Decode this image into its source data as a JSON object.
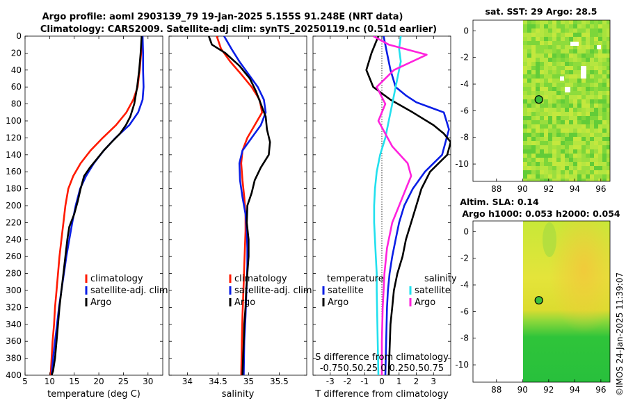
{
  "header": {
    "title_line1": "Argo profile: aoml 2903139_79 19-Jan-2025 5.155S 91.248E (NRT data)",
    "title_line2": "Climatology: CARS2009. Satellite-adj clim: synTS_20250119.nc (0.51d earlier)"
  },
  "timestamp": "©IMOS 24-Jan-2025 11:39:07",
  "colors": {
    "climatology": "#ff1a00",
    "satellite": "#0a1ee6",
    "argo": "#000000",
    "s_satellite": "#22e0ee",
    "s_argo": "#ff22dd"
  },
  "chart_data": [
    {
      "id": "temperature",
      "type": "line",
      "xlabel": "temperature (deg C)",
      "ylabel": "",
      "xlim": [
        5,
        33
      ],
      "ylim": [
        400,
        0
      ],
      "xticks": [
        5,
        10,
        15,
        20,
        25,
        30
      ],
      "yticks": [
        0,
        20,
        40,
        60,
        80,
        100,
        120,
        140,
        160,
        180,
        200,
        220,
        240,
        260,
        280,
        300,
        320,
        340,
        360,
        380,
        400
      ],
      "legend": [
        "climatology",
        "satellite-adj. clim",
        "Argo"
      ],
      "series": [
        {
          "name": "climatology",
          "color_key": "climatology",
          "x": [
            28.8,
            28.6,
            28.3,
            27.9,
            27.0,
            25.6,
            23.5,
            20.8,
            18.3,
            16.3,
            14.8,
            13.8,
            13.2,
            12.8,
            12.4,
            12.0,
            11.7,
            11.4,
            11.1,
            10.9,
            10.6,
            10.4,
            10.2
          ],
          "y": [
            0,
            20,
            40,
            60,
            75,
            90,
            105,
            120,
            135,
            150,
            165,
            180,
            200,
            220,
            240,
            260,
            280,
            300,
            320,
            340,
            360,
            380,
            400
          ]
        },
        {
          "name": "satellite-adj. clim",
          "color_key": "satellite",
          "x": [
            28.9,
            29.0,
            29.0,
            29.1,
            28.9,
            28.0,
            26.2,
            23.4,
            21.0,
            19.0,
            17.4,
            16.2,
            15.3,
            14.6,
            14.0,
            13.4,
            12.9,
            12.4,
            11.9,
            11.5,
            11.1,
            10.7,
            10.4
          ],
          "y": [
            0,
            20,
            40,
            60,
            75,
            90,
            105,
            120,
            135,
            150,
            165,
            180,
            200,
            220,
            240,
            260,
            280,
            300,
            320,
            340,
            360,
            380,
            400
          ]
        },
        {
          "name": "Argo",
          "color_key": "argo",
          "x": [
            28.7,
            28.5,
            28.2,
            27.8,
            27.2,
            26.4,
            25.5,
            24.3,
            22.6,
            21.0,
            19.6,
            18.2,
            17.0,
            16.3,
            15.7,
            15.0,
            14.0,
            13.6,
            13.2,
            12.8,
            12.4,
            12.0,
            11.7,
            11.4,
            11.1,
            10.7,
            10.4
          ],
          "y": [
            0,
            20,
            40,
            60,
            80,
            95,
            105,
            115,
            125,
            135,
            145,
            155,
            165,
            180,
            195,
            210,
            225,
            240,
            260,
            280,
            300,
            320,
            340,
            360,
            380,
            395,
            400
          ]
        }
      ]
    },
    {
      "id": "salinity",
      "type": "line",
      "xlabel": "salinity",
      "ylabel": "",
      "xlim": [
        33.7,
        35.95
      ],
      "ylim": [
        400,
        0
      ],
      "xticks": [
        34,
        34.5,
        35,
        35.5
      ],
      "yticks": [
        0,
        20,
        40,
        60,
        80,
        100,
        120,
        140,
        160,
        180,
        200,
        220,
        240,
        260,
        280,
        300,
        320,
        340,
        360,
        380,
        400
      ],
      "legend": [
        "climatology",
        "satellite-adj. clim",
        "Argo"
      ],
      "series": [
        {
          "name": "climatology",
          "color_key": "climatology",
          "x": [
            34.48,
            34.55,
            34.7,
            34.88,
            35.05,
            35.18,
            35.22,
            35.1,
            34.98,
            34.9,
            34.88,
            34.9,
            34.93,
            34.95,
            34.95,
            34.94,
            34.93,
            34.92,
            34.91,
            34.9,
            34.89,
            34.88
          ],
          "y": [
            0,
            15,
            30,
            45,
            60,
            75,
            90,
            105,
            120,
            135,
            150,
            170,
            190,
            210,
            230,
            250,
            270,
            290,
            310,
            330,
            360,
            400
          ]
        },
        {
          "name": "satellite-adj. clim",
          "color_key": "satellite",
          "x": [
            34.6,
            34.72,
            34.85,
            35.0,
            35.15,
            35.25,
            35.28,
            35.2,
            35.05,
            34.9,
            34.85,
            34.86,
            34.9,
            34.95,
            34.97,
            34.98,
            34.98,
            34.97,
            34.96,
            34.95,
            34.93,
            34.92
          ],
          "y": [
            0,
            15,
            30,
            45,
            60,
            75,
            90,
            105,
            120,
            135,
            150,
            170,
            190,
            210,
            230,
            250,
            270,
            290,
            310,
            330,
            360,
            400
          ]
        },
        {
          "name": "Argo",
          "color_key": "argo",
          "x": [
            34.35,
            34.4,
            34.62,
            34.85,
            35.02,
            35.12,
            35.2,
            35.28,
            35.3,
            35.35,
            35.33,
            35.2,
            35.1,
            35.05,
            34.98,
            34.97,
            35.0,
            35.0,
            34.98,
            34.96,
            34.95,
            34.93,
            34.92,
            34.91,
            34.9
          ],
          "y": [
            0,
            10,
            20,
            35,
            50,
            65,
            80,
            95,
            110,
            125,
            140,
            155,
            170,
            185,
            200,
            220,
            240,
            260,
            280,
            300,
            320,
            340,
            360,
            380,
            400
          ]
        }
      ]
    },
    {
      "id": "difference",
      "type": "line",
      "xlabel": "T difference from climatology",
      "ylabel": "",
      "xlim": [
        -4,
        4
      ],
      "ylim": [
        400,
        0
      ],
      "xticks": [
        -3,
        -2,
        -1,
        0,
        1,
        2,
        3
      ],
      "xtick_labels": [
        "-3",
        "-2",
        "-1",
        "0",
        "1",
        "2",
        "3"
      ],
      "s_axis_label": "S difference from climatology",
      "s_tick_labels_text": "-0.750.50.25  0  0.250.50.75",
      "yticks": [
        0,
        20,
        40,
        60,
        80,
        100,
        120,
        140,
        160,
        180,
        200,
        220,
        240,
        260,
        280,
        300,
        320,
        340,
        360,
        380,
        400
      ],
      "legend_headers": [
        "temperature",
        "salinity"
      ],
      "legend": [
        "satellite",
        "Argo",
        "satellite",
        "Argo"
      ],
      "series": [
        {
          "name": "T satellite",
          "color_key": "satellite",
          "x": [
            0.1,
            0.3,
            0.5,
            0.8,
            1.4,
            2.0,
            2.8,
            3.6,
            3.9,
            3.5,
            2.5,
            1.8,
            1.3,
            1.0,
            0.8,
            0.6,
            0.45,
            0.35,
            0.3,
            0.25,
            0.2
          ],
          "y": [
            0,
            20,
            40,
            60,
            70,
            78,
            84,
            90,
            110,
            140,
            160,
            180,
            200,
            220,
            240,
            260,
            280,
            300,
            320,
            360,
            400
          ]
        },
        {
          "name": "T Argo",
          "color_key": "argo",
          "x": [
            -0.2,
            -0.6,
            -0.9,
            -0.5,
            0.5,
            1.8,
            3.0,
            3.6,
            4.0,
            3.8,
            2.8,
            2.3,
            2.0,
            1.7,
            1.4,
            1.2,
            0.9,
            0.7,
            0.6,
            0.5,
            0.45,
            0.4
          ],
          "y": [
            0,
            20,
            40,
            60,
            75,
            90,
            105,
            115,
            125,
            140,
            160,
            180,
            200,
            220,
            240,
            260,
            280,
            300,
            320,
            340,
            370,
            400
          ]
        },
        {
          "name": "S satellite",
          "color_key": "s_satellite",
          "x": [
            1.1,
            1.0,
            1.1,
            0.95,
            0.8,
            0.6,
            0.4,
            0.2,
            -0.1,
            -0.3,
            -0.4,
            -0.45,
            -0.45,
            -0.4,
            -0.35,
            -0.3,
            -0.3,
            -0.25,
            -0.2
          ],
          "y": [
            0,
            15,
            30,
            45,
            60,
            80,
            100,
            120,
            140,
            160,
            180,
            200,
            220,
            240,
            260,
            280,
            300,
            350,
            400
          ]
        },
        {
          "name": "S Argo",
          "color_key": "s_argo",
          "x": [
            -0.5,
            0.4,
            2.6,
            0.7,
            -0.3,
            0.2,
            -0.2,
            0.6,
            1.5,
            1.7,
            1.4,
            1.0,
            0.6,
            0.3,
            0.15,
            0.1,
            0.05,
            0.0,
            0.0
          ],
          "y": [
            0,
            10,
            22,
            40,
            60,
            80,
            100,
            130,
            150,
            165,
            180,
            200,
            220,
            250,
            280,
            300,
            320,
            360,
            400
          ]
        }
      ]
    }
  ],
  "sst_map": {
    "title": "sat. SST: 29 Argo: 28.5",
    "xticks": [
      88,
      90,
      92,
      94,
      96
    ],
    "yticks": [
      0,
      -2,
      -4,
      -6,
      -8,
      -10
    ],
    "marker": {
      "lon": 91.248,
      "lat": -5.155
    }
  },
  "sla_map": {
    "title_line1": "Altim. SLA: 0.14",
    "title_line2": "Argo h1000: 0.053 h2000: 0.054",
    "xticks": [
      88,
      90,
      92,
      94,
      96
    ],
    "yticks": [
      0,
      -2,
      -4,
      -6,
      -8,
      -10
    ],
    "marker": {
      "lon": 91.248,
      "lat": -5.155
    }
  }
}
